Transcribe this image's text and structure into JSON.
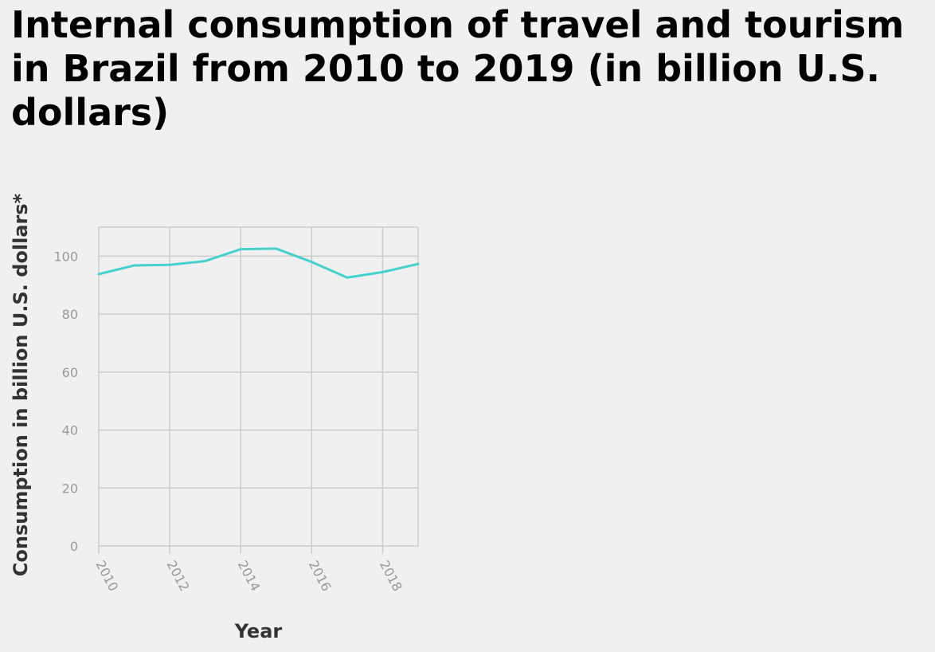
{
  "chart_data": {
    "type": "line",
    "title": "Internal consumption of travel and tourism in Brazil from 2010 to 2019 (in billion U.S. dollars)",
    "xlabel": "Year",
    "ylabel": "Consumption in billion U.S. dollars*",
    "x": [
      2010,
      2011,
      2012,
      2013,
      2014,
      2015,
      2016,
      2017,
      2018,
      2019
    ],
    "series": [
      {
        "values": [
          93.8,
          96.8,
          97.0,
          98.3,
          102.4,
          102.6,
          98.0,
          92.6,
          94.5,
          97.3
        ],
        "color": "#48d1cc"
      }
    ],
    "xlim": [
      2010,
      2019
    ],
    "ylim": [
      0,
      110
    ],
    "xticks": [
      "2010",
      "2012",
      "2014",
      "2016",
      "2018"
    ],
    "yticks": [
      "0",
      "20",
      "40",
      "60",
      "80",
      "100"
    ],
    "grid": true,
    "legend": "none"
  }
}
